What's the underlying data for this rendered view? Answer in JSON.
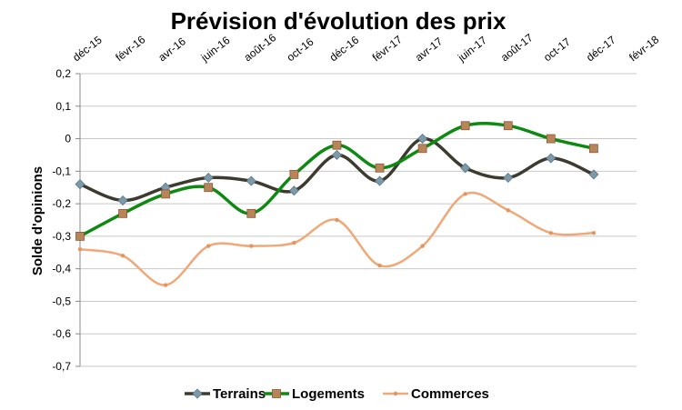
{
  "chart_data": {
    "type": "line",
    "title": "Prévision d'évolution des prix",
    "xlabel": "",
    "ylabel": "Solde d'opinions",
    "x_tick_labels": [
      "déc-15",
      "févr-16",
      "avr-16",
      "juin-16",
      "août-16",
      "oct-16",
      "déc-16",
      "févr-17",
      "avr-17",
      "juin-17",
      "août-17",
      "oct-17",
      "déc-17",
      "févr-18"
    ],
    "categories": [
      "déc-15",
      "févr-16",
      "avr-16",
      "juin-16",
      "août-16",
      "oct-16",
      "déc-16",
      "févr-17",
      "avr-17",
      "juin-17",
      "août-17",
      "oct-17",
      "déc-17"
    ],
    "y_tick_labels": [
      "0,2",
      "0,1",
      "0",
      "-0,1",
      "-0,2",
      "-0,3",
      "-0,4",
      "-0,5",
      "-0,6",
      "-0,7"
    ],
    "ylim": [
      -0.7,
      0.2
    ],
    "y_ticks": [
      0.2,
      0.1,
      0,
      -0.1,
      -0.2,
      -0.3,
      -0.4,
      -0.5,
      -0.6,
      -0.7
    ],
    "grid": "horizontal",
    "legend_position": "bottom",
    "x_axis_position": "top",
    "series": [
      {
        "name": "Terrains",
        "color": "#3d3a2e",
        "marker": "diamond",
        "marker_color": "#7c9aaa",
        "values": [
          -0.14,
          -0.19,
          -0.15,
          -0.12,
          -0.13,
          -0.16,
          -0.05,
          -0.13,
          0.0,
          -0.09,
          -0.12,
          -0.06,
          -0.11
        ]
      },
      {
        "name": "Logements",
        "color": "#0e8a12",
        "marker": "square",
        "marker_color": "#b8845a",
        "values": [
          -0.3,
          -0.23,
          -0.17,
          -0.15,
          -0.23,
          -0.11,
          -0.02,
          -0.09,
          -0.03,
          0.04,
          0.04,
          0.0,
          -0.03
        ]
      },
      {
        "name": "Commerces",
        "color": "#f0a878",
        "marker": "dot",
        "marker_color": "#e8935a",
        "values": [
          -0.34,
          -0.36,
          -0.45,
          -0.33,
          -0.33,
          -0.32,
          -0.25,
          -0.39,
          -0.33,
          -0.17,
          -0.22,
          -0.29,
          -0.29
        ]
      }
    ]
  }
}
